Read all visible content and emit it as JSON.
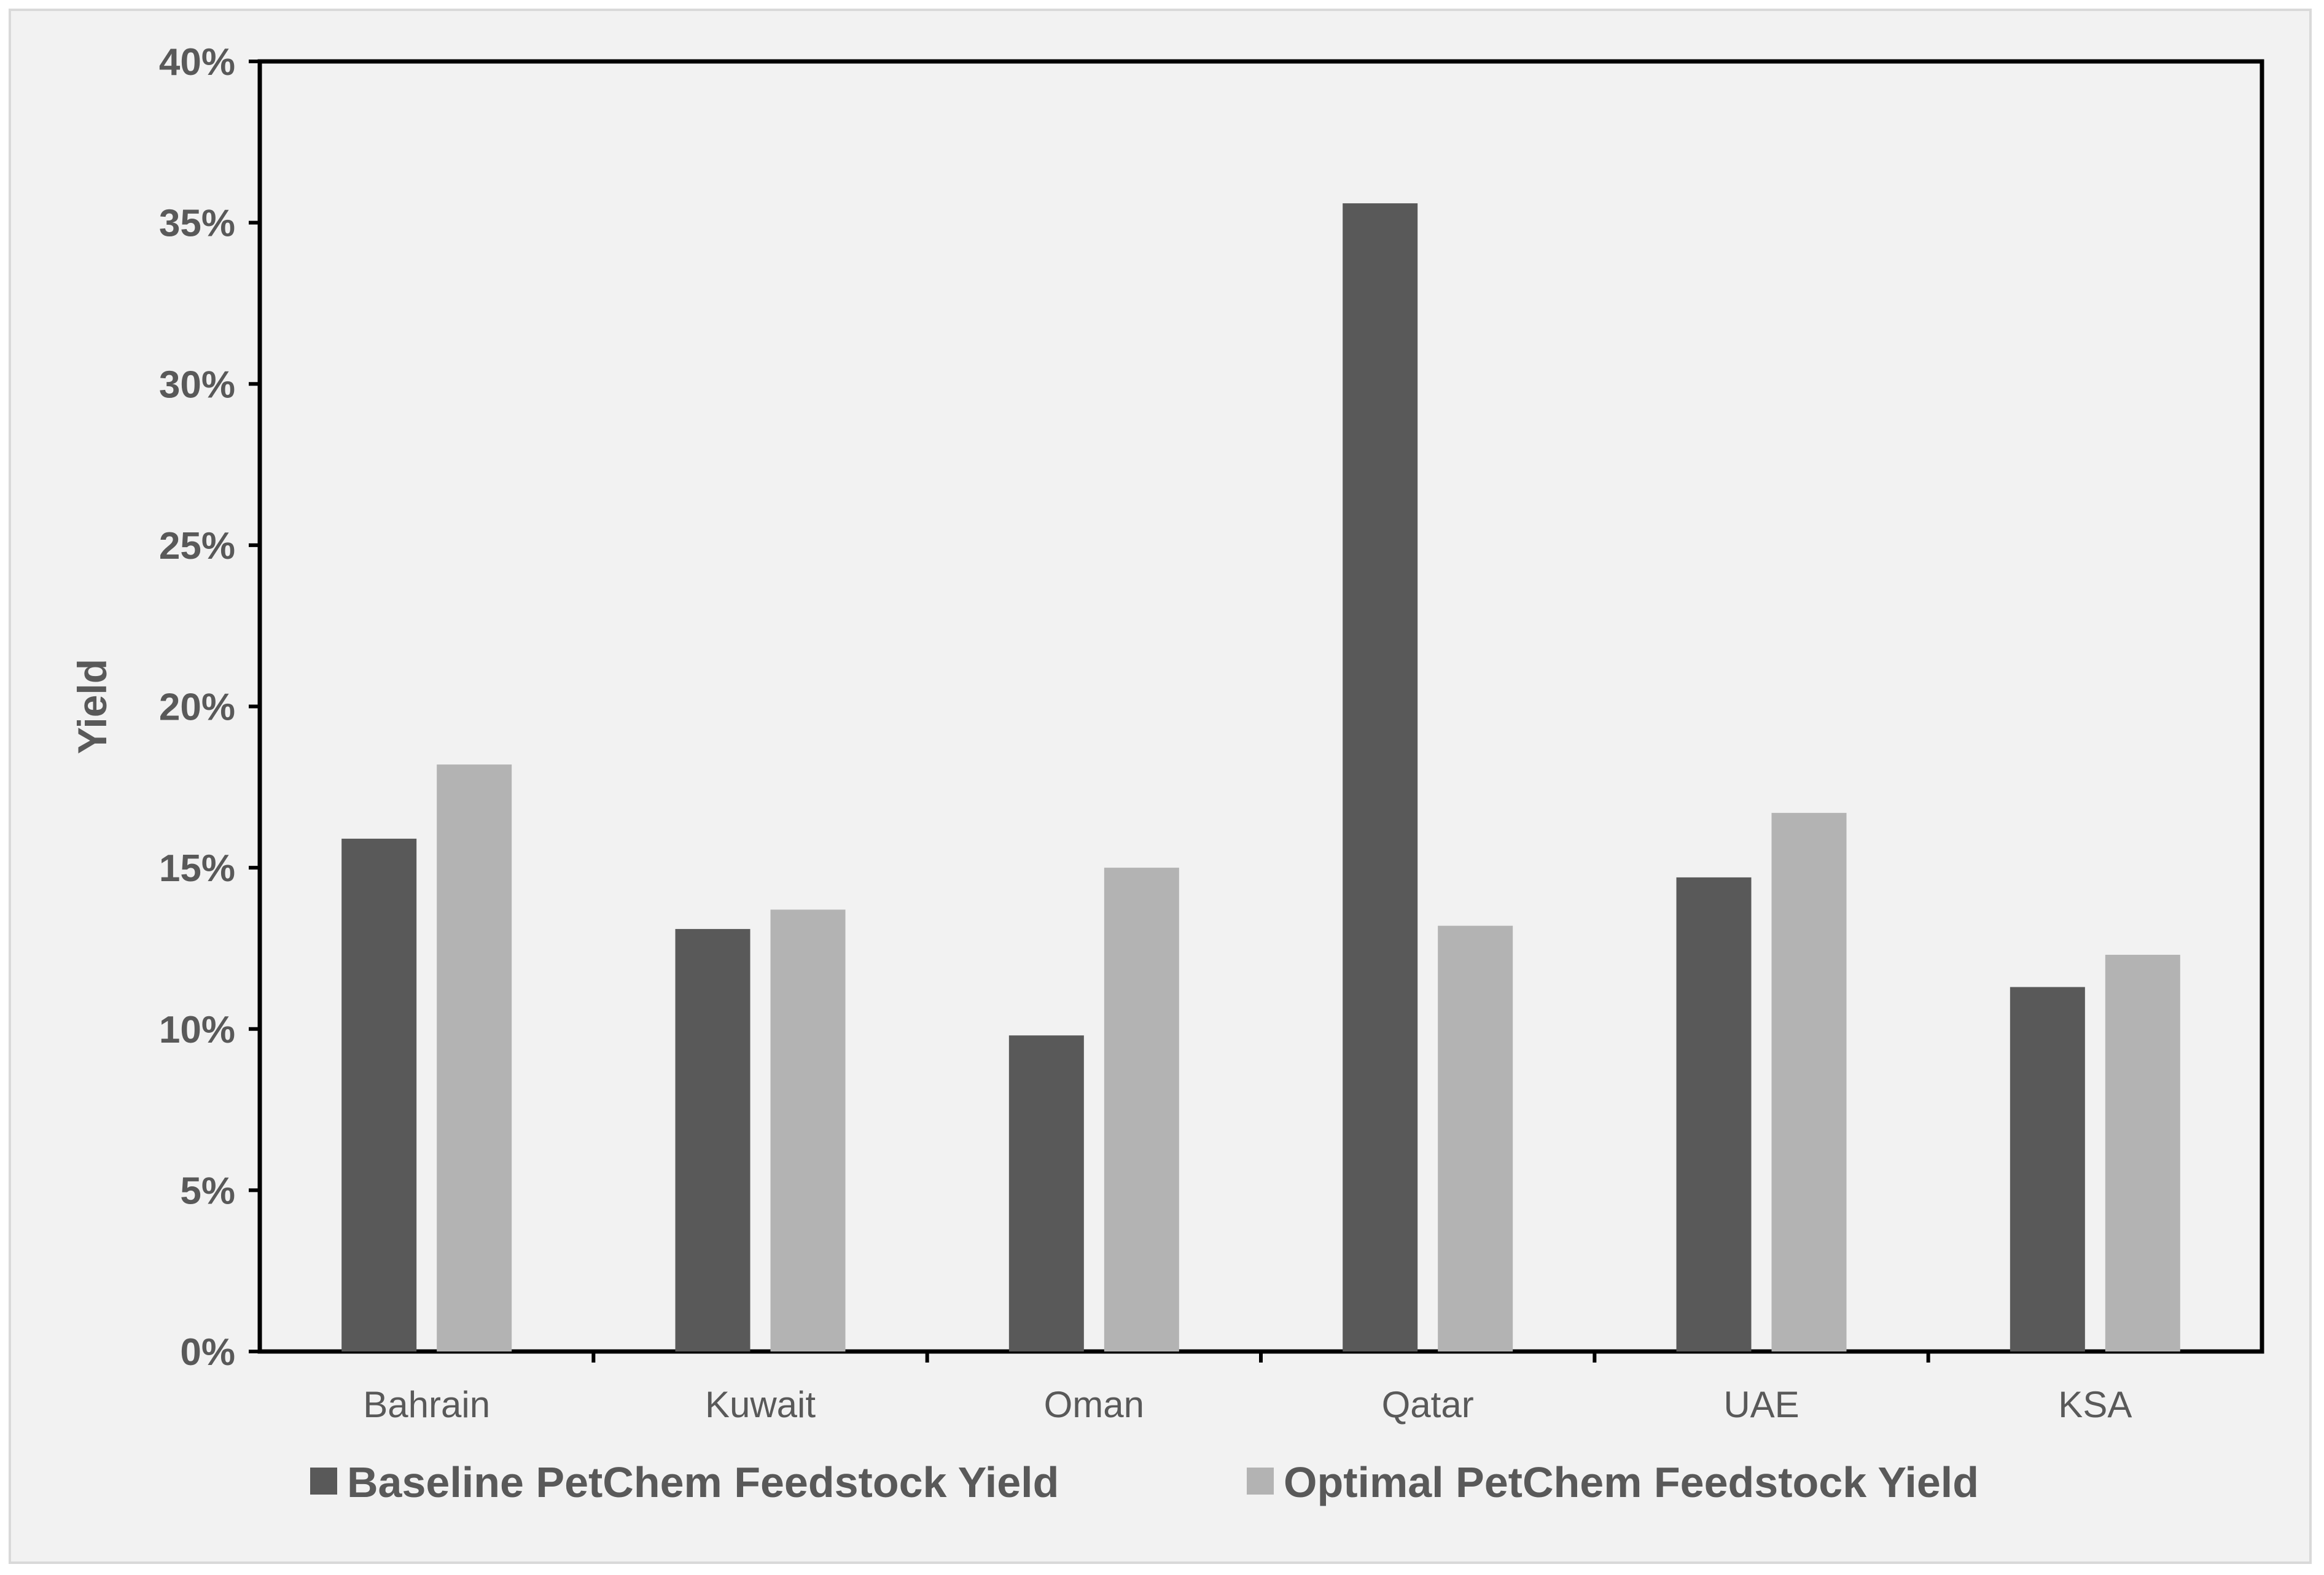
{
  "chart_data": {
    "type": "bar",
    "title": "",
    "xlabel": "",
    "ylabel": "Yield",
    "categories": [
      "Bahrain",
      "Kuwait",
      "Oman",
      "Qatar",
      "UAE",
      "KSA"
    ],
    "series": [
      {
        "name": "Baseline PetChem Feedstock Yield",
        "color": "#595959",
        "values": [
          15.9,
          13.1,
          9.8,
          35.6,
          14.7,
          11.3
        ]
      },
      {
        "name": "Optimal PetChem Feedstock Yield",
        "color": "#b3b3b3",
        "values": [
          18.2,
          13.7,
          15.0,
          13.2,
          16.7,
          12.3
        ]
      }
    ],
    "ylim": [
      0,
      40
    ],
    "yticks": [
      "0%",
      "5%",
      "10%",
      "15%",
      "20%",
      "25%",
      "30%",
      "35%",
      "40%"
    ],
    "ytick_values": [
      0,
      5,
      10,
      15,
      20,
      25,
      30,
      35,
      40
    ],
    "grid": false,
    "legend": "bottom"
  }
}
